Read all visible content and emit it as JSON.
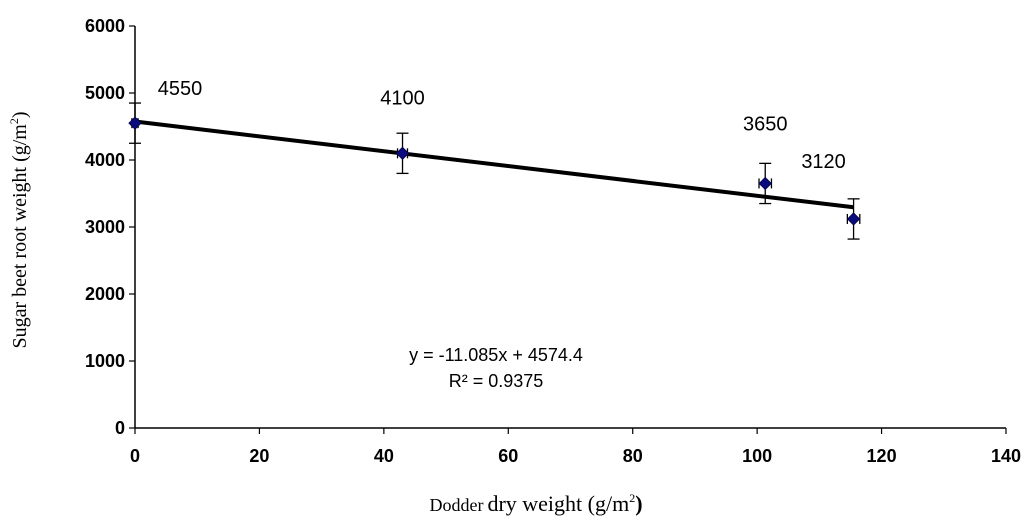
{
  "chart_data": {
    "type": "scatter",
    "title": "",
    "x_title": {
      "text_a": "Dodder",
      "text_b": "dry weight (g/m",
      "sup": "2",
      "close": ")"
    },
    "y_title": {
      "text": "Sugar beet  root weight (g/m",
      "sup": "2",
      "close": ")"
    },
    "xlim": [
      0,
      140
    ],
    "ylim": [
      0,
      6000
    ],
    "x_ticks": [
      0,
      20,
      40,
      60,
      80,
      100,
      120,
      140
    ],
    "y_ticks": [
      0,
      1000,
      2000,
      3000,
      4000,
      5000,
      6000
    ],
    "x_tick_labels": [
      "0",
      "20",
      "40",
      "60",
      "80",
      "100",
      "120",
      "140"
    ],
    "y_tick_labels": [
      "0",
      "1000",
      "2000",
      "3000",
      "4000",
      "5000",
      "6000"
    ],
    "grid": false,
    "legend": "none",
    "series": [
      {
        "points": [
          {
            "x": 0,
            "y": 4550,
            "y_err": 300,
            "x_err": 0.5,
            "label": "4550"
          },
          {
            "x": 43,
            "y": 4100,
            "y_err": 300,
            "x_err": 0.8,
            "label": "4100"
          },
          {
            "x": 101.3,
            "y": 3650,
            "y_err": 300,
            "x_err": 1.0,
            "label": "3650"
          },
          {
            "x": 115.5,
            "y": 3120,
            "y_err": 300,
            "x_err": 1.0,
            "label": "3120"
          }
        ],
        "marker": "diamond",
        "color": "#0b0b80"
      }
    ],
    "trendline": {
      "slope": -11.085,
      "intercept": 4574.4,
      "x_range": [
        0,
        115.5
      ],
      "equation": "y = -11.085x + 4574.4",
      "r2": "R² = 0.9375"
    }
  }
}
